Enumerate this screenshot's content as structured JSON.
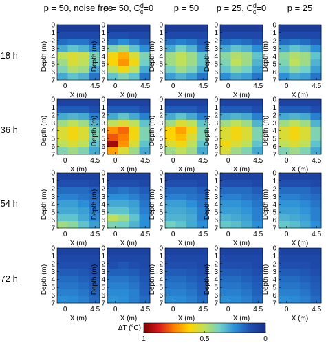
{
  "chart_data": {
    "type": "heatmap",
    "columns": [
      "p = 50, noise free",
      "p = 50, C",
      "p = 50",
      "p = 25, C",
      "p = 25"
    ],
    "column_super": [
      "",
      "d",
      "",
      "d",
      ""
    ],
    "column_sub": [
      "",
      "c",
      "",
      "c",
      ""
    ],
    "column_suffix": [
      "",
      "=0",
      "",
      "=0",
      ""
    ],
    "rows": [
      "t = 18 h",
      "t = 36 h",
      "t = 54 h",
      "t = 72 h"
    ],
    "ylabel": "Depth (m)",
    "xlabel": "X (m)",
    "yticks": [
      "0",
      "1",
      "2",
      "3",
      "4",
      "5",
      "6",
      "7"
    ],
    "xticks": [
      "0",
      "4.5"
    ],
    "xtick_values": [
      0,
      4.5
    ],
    "x_range": [
      -1.2,
      5.2
    ],
    "y_range": [
      0,
      7
    ],
    "colorbar": {
      "label": "ΔT (°C)",
      "ticks": [
        "1",
        "0.5",
        "0"
      ],
      "range": [
        1,
        0
      ],
      "colormap": [
        "#7f0000",
        "#d7191c",
        "#ff7f00",
        "#ffd400",
        "#bfe05a",
        "#6fd0c8",
        "#2b8fd8",
        "#1f4fb0",
        "#1a2f8a"
      ]
    },
    "grids": [
      [
        [
          [
            0.05,
            0.05,
            0.05,
            0.05
          ],
          [
            0.1,
            0.1,
            0.1,
            0.1
          ],
          [
            0.18,
            0.2,
            0.2,
            0.15
          ],
          [
            0.3,
            0.35,
            0.32,
            0.25
          ],
          [
            0.5,
            0.55,
            0.52,
            0.4
          ],
          [
            0.45,
            0.55,
            0.5,
            0.38
          ],
          [
            0.4,
            0.48,
            0.45,
            0.3
          ],
          [
            0.3,
            0.35,
            0.32,
            0.2
          ]
        ],
        [
          [
            0.05,
            0.05,
            0.05,
            0.05
          ],
          [
            0.12,
            0.12,
            0.1,
            0.1
          ],
          [
            0.2,
            0.25,
            0.2,
            0.15
          ],
          [
            0.4,
            0.45,
            0.35,
            0.25
          ],
          [
            0.6,
            0.68,
            0.55,
            0.4
          ],
          [
            0.62,
            0.72,
            0.6,
            0.38
          ],
          [
            0.5,
            0.6,
            0.5,
            0.3
          ],
          [
            0.35,
            0.4,
            0.35,
            0.2
          ]
        ],
        [
          [
            0.05,
            0.05,
            0.05,
            0.05
          ],
          [
            0.1,
            0.1,
            0.1,
            0.1
          ],
          [
            0.2,
            0.22,
            0.2,
            0.15
          ],
          [
            0.3,
            0.38,
            0.32,
            0.2
          ],
          [
            0.45,
            0.5,
            0.45,
            0.35
          ],
          [
            0.45,
            0.5,
            0.45,
            0.35
          ],
          [
            0.38,
            0.45,
            0.4,
            0.3
          ],
          [
            0.28,
            0.32,
            0.28,
            0.2
          ]
        ],
        [
          [
            0.05,
            0.05,
            0.05,
            0.05
          ],
          [
            0.1,
            0.1,
            0.1,
            0.1
          ],
          [
            0.18,
            0.2,
            0.18,
            0.15
          ],
          [
            0.3,
            0.35,
            0.32,
            0.25
          ],
          [
            0.42,
            0.48,
            0.45,
            0.35
          ],
          [
            0.4,
            0.5,
            0.45,
            0.32
          ],
          [
            0.35,
            0.42,
            0.38,
            0.28
          ],
          [
            0.25,
            0.3,
            0.28,
            0.2
          ]
        ],
        [
          [
            0.05,
            0.05,
            0.05,
            0.05
          ],
          [
            0.1,
            0.1,
            0.1,
            0.1
          ],
          [
            0.18,
            0.2,
            0.18,
            0.15
          ],
          [
            0.3,
            0.35,
            0.32,
            0.25
          ],
          [
            0.42,
            0.48,
            0.45,
            0.35
          ],
          [
            0.4,
            0.5,
            0.45,
            0.32
          ],
          [
            0.35,
            0.42,
            0.38,
            0.28
          ],
          [
            0.25,
            0.3,
            0.28,
            0.2
          ]
        ]
      ],
      [
        [
          [
            0.08,
            0.08,
            0.08,
            0.08
          ],
          [
            0.15,
            0.15,
            0.15,
            0.12
          ],
          [
            0.3,
            0.32,
            0.3,
            0.22
          ],
          [
            0.45,
            0.5,
            0.45,
            0.32
          ],
          [
            0.55,
            0.6,
            0.55,
            0.4
          ],
          [
            0.55,
            0.6,
            0.55,
            0.4
          ],
          [
            0.5,
            0.55,
            0.5,
            0.35
          ],
          [
            0.4,
            0.45,
            0.4,
            0.3
          ]
        ],
        [
          [
            0.08,
            0.08,
            0.08,
            0.08
          ],
          [
            0.15,
            0.15,
            0.15,
            0.12
          ],
          [
            0.3,
            0.35,
            0.3,
            0.22
          ],
          [
            0.5,
            0.55,
            0.5,
            0.35
          ],
          [
            0.72,
            0.78,
            0.6,
            0.4
          ],
          [
            0.8,
            0.75,
            0.6,
            0.4
          ],
          [
            0.95,
            0.72,
            0.55,
            0.35
          ],
          [
            0.7,
            0.55,
            0.45,
            0.3
          ]
        ],
        [
          [
            0.08,
            0.08,
            0.08,
            0.08
          ],
          [
            0.15,
            0.15,
            0.15,
            0.12
          ],
          [
            0.3,
            0.35,
            0.3,
            0.22
          ],
          [
            0.45,
            0.55,
            0.5,
            0.35
          ],
          [
            0.62,
            0.7,
            0.6,
            0.4
          ],
          [
            0.62,
            0.66,
            0.55,
            0.4
          ],
          [
            0.55,
            0.6,
            0.5,
            0.35
          ],
          [
            0.45,
            0.5,
            0.45,
            0.3
          ]
        ],
        [
          [
            0.08,
            0.08,
            0.08,
            0.08
          ],
          [
            0.15,
            0.15,
            0.15,
            0.12
          ],
          [
            0.3,
            0.32,
            0.3,
            0.22
          ],
          [
            0.45,
            0.5,
            0.45,
            0.32
          ],
          [
            0.55,
            0.6,
            0.55,
            0.4
          ],
          [
            0.55,
            0.6,
            0.55,
            0.4
          ],
          [
            0.6,
            0.55,
            0.5,
            0.35
          ],
          [
            0.55,
            0.45,
            0.4,
            0.3
          ]
        ],
        [
          [
            0.08,
            0.08,
            0.08,
            0.08
          ],
          [
            0.15,
            0.15,
            0.15,
            0.12
          ],
          [
            0.3,
            0.32,
            0.3,
            0.22
          ],
          [
            0.45,
            0.5,
            0.45,
            0.32
          ],
          [
            0.55,
            0.6,
            0.55,
            0.4
          ],
          [
            0.55,
            0.6,
            0.55,
            0.4
          ],
          [
            0.5,
            0.55,
            0.5,
            0.35
          ],
          [
            0.4,
            0.45,
            0.4,
            0.3
          ]
        ]
      ],
      [
        [
          [
            0.08,
            0.08,
            0.08,
            0.08
          ],
          [
            0.12,
            0.12,
            0.12,
            0.1
          ],
          [
            0.18,
            0.18,
            0.18,
            0.15
          ],
          [
            0.22,
            0.22,
            0.2,
            0.18
          ],
          [
            0.28,
            0.28,
            0.25,
            0.2
          ],
          [
            0.3,
            0.3,
            0.28,
            0.22
          ],
          [
            0.35,
            0.35,
            0.3,
            0.25
          ],
          [
            0.45,
            0.42,
            0.35,
            0.28
          ]
        ],
        [
          [
            0.08,
            0.08,
            0.08,
            0.08
          ],
          [
            0.12,
            0.12,
            0.12,
            0.1
          ],
          [
            0.18,
            0.2,
            0.18,
            0.15
          ],
          [
            0.25,
            0.25,
            0.22,
            0.18
          ],
          [
            0.3,
            0.3,
            0.28,
            0.2
          ],
          [
            0.35,
            0.35,
            0.3,
            0.22
          ],
          [
            0.5,
            0.45,
            0.35,
            0.25
          ],
          [
            0.4,
            0.38,
            0.32,
            0.25
          ]
        ],
        [
          [
            0.08,
            0.08,
            0.08,
            0.08
          ],
          [
            0.12,
            0.12,
            0.12,
            0.1
          ],
          [
            0.18,
            0.18,
            0.18,
            0.15
          ],
          [
            0.22,
            0.22,
            0.2,
            0.18
          ],
          [
            0.28,
            0.28,
            0.25,
            0.2
          ],
          [
            0.3,
            0.3,
            0.28,
            0.22
          ],
          [
            0.32,
            0.32,
            0.3,
            0.22
          ],
          [
            0.38,
            0.35,
            0.3,
            0.25
          ]
        ],
        [
          [
            0.08,
            0.08,
            0.08,
            0.08
          ],
          [
            0.12,
            0.12,
            0.12,
            0.1
          ],
          [
            0.18,
            0.18,
            0.18,
            0.15
          ],
          [
            0.22,
            0.22,
            0.2,
            0.18
          ],
          [
            0.26,
            0.26,
            0.24,
            0.2
          ],
          [
            0.28,
            0.28,
            0.26,
            0.22
          ],
          [
            0.32,
            0.3,
            0.28,
            0.22
          ],
          [
            0.36,
            0.34,
            0.3,
            0.25
          ]
        ],
        [
          [
            0.08,
            0.08,
            0.08,
            0.08
          ],
          [
            0.12,
            0.12,
            0.12,
            0.1
          ],
          [
            0.18,
            0.18,
            0.18,
            0.15
          ],
          [
            0.22,
            0.22,
            0.2,
            0.18
          ],
          [
            0.26,
            0.26,
            0.24,
            0.2
          ],
          [
            0.28,
            0.28,
            0.26,
            0.22
          ],
          [
            0.32,
            0.3,
            0.28,
            0.22
          ],
          [
            0.36,
            0.34,
            0.3,
            0.25
          ]
        ]
      ],
      [
        [
          [
            0.08,
            0.08,
            0.08,
            0.08
          ],
          [
            0.1,
            0.1,
            0.1,
            0.1
          ],
          [
            0.12,
            0.12,
            0.12,
            0.1
          ],
          [
            0.15,
            0.15,
            0.14,
            0.12
          ],
          [
            0.18,
            0.18,
            0.16,
            0.14
          ],
          [
            0.2,
            0.2,
            0.18,
            0.15
          ],
          [
            0.22,
            0.22,
            0.2,
            0.16
          ],
          [
            0.25,
            0.24,
            0.22,
            0.18
          ]
        ],
        [
          [
            0.08,
            0.08,
            0.08,
            0.08
          ],
          [
            0.1,
            0.1,
            0.1,
            0.1
          ],
          [
            0.12,
            0.14,
            0.12,
            0.1
          ],
          [
            0.16,
            0.16,
            0.15,
            0.12
          ],
          [
            0.2,
            0.2,
            0.18,
            0.14
          ],
          [
            0.22,
            0.22,
            0.2,
            0.15
          ],
          [
            0.24,
            0.24,
            0.22,
            0.16
          ],
          [
            0.26,
            0.25,
            0.22,
            0.18
          ]
        ],
        [
          [
            0.08,
            0.08,
            0.08,
            0.08
          ],
          [
            0.1,
            0.1,
            0.1,
            0.1
          ],
          [
            0.12,
            0.12,
            0.12,
            0.1
          ],
          [
            0.15,
            0.15,
            0.14,
            0.12
          ],
          [
            0.18,
            0.18,
            0.16,
            0.14
          ],
          [
            0.2,
            0.2,
            0.18,
            0.15
          ],
          [
            0.22,
            0.22,
            0.2,
            0.16
          ],
          [
            0.25,
            0.24,
            0.22,
            0.18
          ]
        ],
        [
          [
            0.08,
            0.08,
            0.08,
            0.08
          ],
          [
            0.1,
            0.1,
            0.1,
            0.1
          ],
          [
            0.12,
            0.12,
            0.12,
            0.1
          ],
          [
            0.15,
            0.15,
            0.14,
            0.12
          ],
          [
            0.18,
            0.18,
            0.16,
            0.14
          ],
          [
            0.2,
            0.2,
            0.18,
            0.15
          ],
          [
            0.22,
            0.22,
            0.2,
            0.16
          ],
          [
            0.25,
            0.24,
            0.22,
            0.18
          ]
        ],
        [
          [
            0.08,
            0.08,
            0.08,
            0.08
          ],
          [
            0.1,
            0.1,
            0.1,
            0.1
          ],
          [
            0.12,
            0.12,
            0.12,
            0.1
          ],
          [
            0.15,
            0.15,
            0.14,
            0.12
          ],
          [
            0.18,
            0.18,
            0.16,
            0.14
          ],
          [
            0.2,
            0.2,
            0.18,
            0.15
          ],
          [
            0.22,
            0.22,
            0.2,
            0.16
          ],
          [
            0.25,
            0.24,
            0.22,
            0.18
          ]
        ]
      ]
    ]
  }
}
